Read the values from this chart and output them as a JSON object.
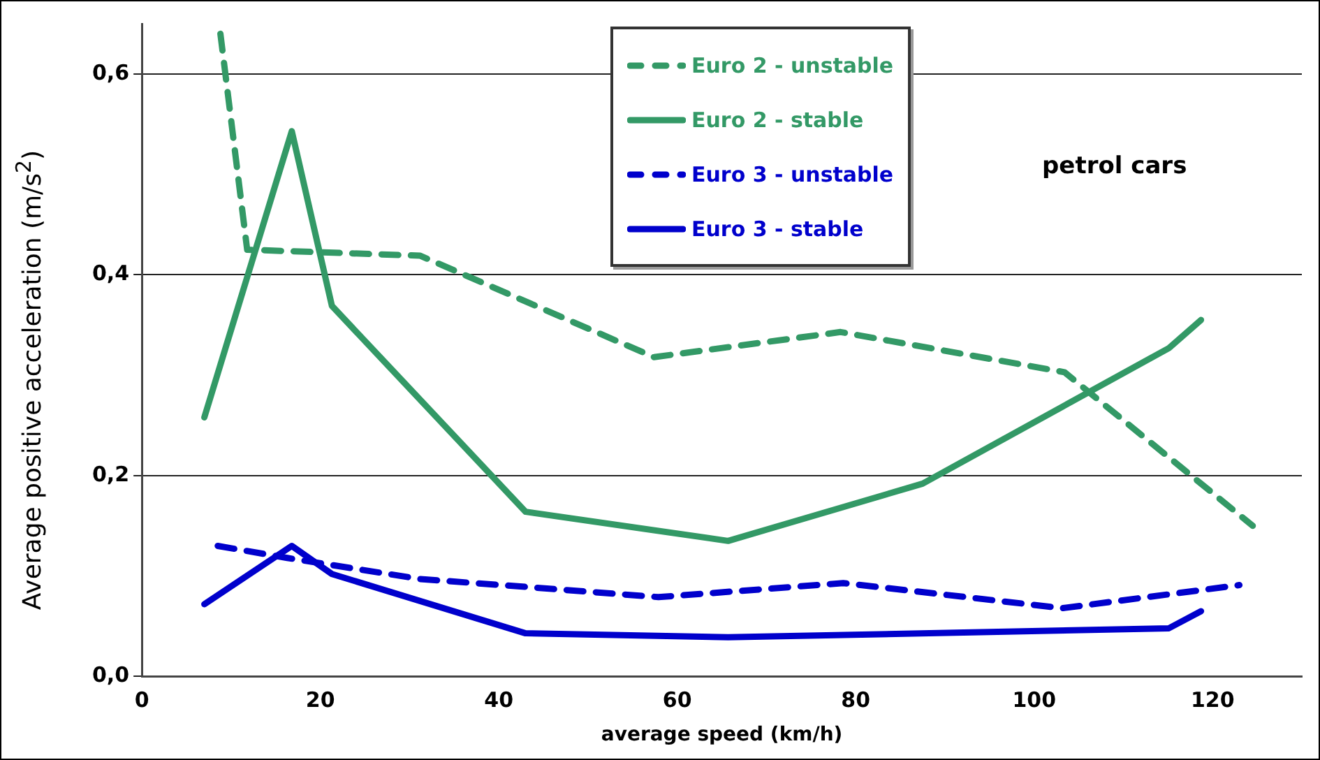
{
  "chart_data": {
    "type": "line",
    "xlabel": "average speed (km/h)",
    "ylabel": "Average positive acceleration (m/s$^{2}$)",
    "annotations": [
      "petrol cars"
    ],
    "xlim": [
      0,
      130
    ],
    "xticks": [
      0,
      20,
      40,
      60,
      80,
      100,
      120
    ],
    "ylim": [
      0,
      0.65
    ],
    "yticks": [
      {
        "value": 0,
        "label": "0,0"
      },
      {
        "value": 0.2,
        "label": "0,2"
      },
      {
        "value": 0.4,
        "label": "0,4"
      },
      {
        "value": 0.6,
        "label": "0,6"
      }
    ],
    "grid": "y",
    "legend": "top",
    "marker": "none",
    "series": [
      {
        "name": "Euro 2 - unstable",
        "color": "#339966",
        "line_style": "dashed",
        "x": [
          8.8,
          11.8,
          31.2,
          57.4,
          78.3,
          103.4,
          124.5
        ],
        "values": [
          0.64,
          0.425,
          0.419,
          0.318,
          0.343,
          0.303,
          0.15
        ]
      },
      {
        "name": "Euro 2 - stable",
        "color": "#339966",
        "line_style": "solid",
        "x": [
          7,
          16.8,
          21.3,
          43,
          65.7,
          87.5,
          115.1,
          118.7
        ],
        "values": [
          0.258,
          0.543,
          0.369,
          0.164,
          0.135,
          0.192,
          0.327,
          0.355
        ]
      },
      {
        "name": "Euro 3 - unstable",
        "color": "#0000cc",
        "line_style": "dashed",
        "x": [
          8.5,
          16.3,
          31.2,
          43.3,
          57.9,
          78.6,
          103.2,
          123
        ],
        "values": [
          0.13,
          0.118,
          0.097,
          0.089,
          0.079,
          0.093,
          0.068,
          0.091
        ]
      },
      {
        "name": "Euro 3 - stable",
        "color": "#0000cc",
        "line_style": "solid",
        "x": [
          7,
          16.8,
          21.3,
          43,
          65.7,
          115.1,
          118.7
        ],
        "values": [
          0.072,
          0.13,
          0.102,
          0.043,
          0.039,
          0.048,
          0.065
        ]
      }
    ]
  }
}
